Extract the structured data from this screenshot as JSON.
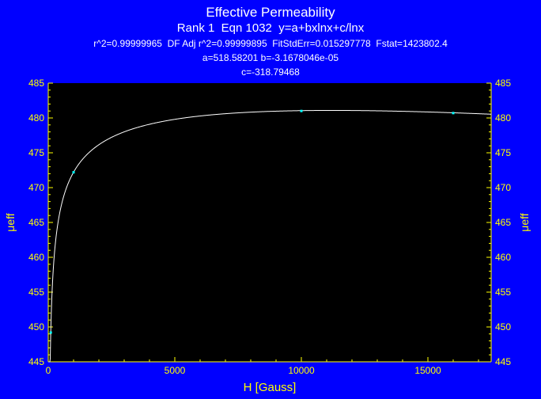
{
  "chart_data": {
    "type": "line",
    "title": "Effective Permeability",
    "subtitle": "Rank 1  Eqn 1032  y=a+bxlnx+c/lnx",
    "stats": "r^2=0.99999965  DF Adj r^2=0.99999895  FitStdErr=0.015297778  Fstat=1423802.4",
    "params_line1": "a=518.58201 b=-3.1678046e-05",
    "params_line2": "c=-318.79468",
    "xlabel": "H [Gauss]",
    "ylabel": "μeff",
    "xlim": [
      0,
      17500
    ],
    "ylim": [
      445,
      485
    ],
    "x_ticks": [
      "0",
      "5000",
      "10000",
      "15000"
    ],
    "x_tick_values": [
      0,
      5000,
      10000,
      15000
    ],
    "y_ticks": [
      "445",
      "450",
      "455",
      "460",
      "465",
      "470",
      "475",
      "480",
      "485"
    ],
    "y_tick_values": [
      445,
      450,
      455,
      460,
      465,
      470,
      475,
      480,
      485
    ],
    "grid": false,
    "points": [
      {
        "x": 100,
        "y": 449.2
      },
      {
        "x": 1000,
        "y": 472.2
      },
      {
        "x": 10000,
        "y": 481.0
      },
      {
        "x": 16000,
        "y": 480.7
      }
    ],
    "fit": {
      "a": 518.58201,
      "b": -3.1678046e-05,
      "c": -318.79468
    },
    "colors": {
      "background": "#0000ff",
      "plot_area": "#000000",
      "axis": "#ffff00",
      "text": "#ffffff",
      "curve": "#ffffff",
      "points": "#00ffff"
    }
  }
}
